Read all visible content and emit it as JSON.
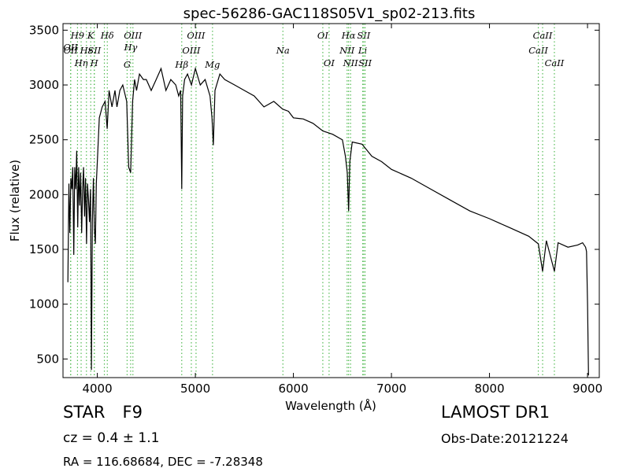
{
  "chart_data": {
    "type": "line",
    "title": "spec-56286-GAC118S05V1_sp02-213.fits",
    "xlabel": "Wavelength (Å)",
    "ylabel": "Flux (relative)",
    "xlim": [
      3650,
      9120
    ],
    "ylim": [
      330,
      3560
    ],
    "xticks": [
      4000,
      5000,
      6000,
      7000,
      8000,
      9000
    ],
    "yticks": [
      500,
      1000,
      1500,
      2000,
      2500,
      3000,
      3500
    ],
    "line_color": "#000000",
    "marker_color": "#55bb55",
    "series": [
      {
        "x": [
          3700,
          3710,
          3720,
          3730,
          3740,
          3750,
          3760,
          3770,
          3780,
          3790,
          3800,
          3810,
          3820,
          3830,
          3840,
          3850,
          3860,
          3870,
          3880,
          3890,
          3900,
          3910,
          3920,
          3930,
          3935,
          3940,
          3950,
          3960,
          3970,
          3980,
          3990,
          4000,
          4020,
          4050,
          4080,
          4101,
          4120,
          4150,
          4180,
          4200,
          4230,
          4260,
          4300,
          4320,
          4340,
          4360,
          4380,
          4400,
          4430,
          4470,
          4500,
          4550,
          4600,
          4650,
          4700,
          4750,
          4800,
          4830,
          4850,
          4861,
          4870,
          4890,
          4920,
          4960,
          5000,
          5050,
          5100,
          5150,
          5170,
          5183,
          5200,
          5250,
          5300,
          5400,
          5500,
          5600,
          5700,
          5800,
          5890,
          5950,
          6000,
          6100,
          6200,
          6300,
          6400,
          6500,
          6530,
          6550,
          6563,
          6575,
          6600,
          6700,
          6800,
          6900,
          7000,
          7200,
          7400,
          7600,
          7800,
          8000,
          8200,
          8400,
          8498,
          8542,
          8580,
          8662,
          8700,
          8800,
          8900,
          8950,
          8980,
          8990,
          9000,
          9010
        ],
        "y": [
          1200,
          2100,
          1650,
          2150,
          2050,
          2250,
          1450,
          2250,
          2050,
          2400,
          1700,
          2250,
          1900,
          2200,
          1650,
          2050,
          2250,
          1800,
          2150,
          1550,
          2100,
          1950,
          1750,
          2050,
          1350,
          400,
          1750,
          2150,
          1700,
          1550,
          2100,
          2300,
          2700,
          2800,
          2850,
          2600,
          2950,
          2800,
          2950,
          2800,
          2950,
          3000,
          2850,
          2250,
          2200,
          2850,
          3050,
          2950,
          3100,
          3050,
          3050,
          2950,
          3050,
          3150,
          2950,
          3050,
          3000,
          2900,
          2950,
          2050,
          2900,
          3050,
          3100,
          3000,
          3150,
          3000,
          3050,
          2900,
          2700,
          2450,
          2950,
          3100,
          3050,
          3000,
          2950,
          2900,
          2800,
          2850,
          2780,
          2760,
          2700,
          2690,
          2650,
          2580,
          2550,
          2500,
          2350,
          2200,
          1850,
          2300,
          2480,
          2460,
          2350,
          2300,
          2230,
          2150,
          2050,
          1950,
          1850,
          1780,
          1700,
          1620,
          1550,
          1300,
          1580,
          1300,
          1560,
          1520,
          1540,
          1560,
          1520,
          1480,
          1000,
          350
        ]
      }
    ],
    "line_markers": [
      {
        "wl": 3727,
        "row": 2,
        "label": "OII"
      },
      {
        "wl": 3729,
        "row": 3,
        "label": "OII"
      },
      {
        "wl": 3798,
        "row": 1,
        "label": "H9"
      },
      {
        "wl": 3835,
        "row": 4,
        "label": "Hη"
      },
      {
        "wl": 3889,
        "row": 3,
        "label": "Hε"
      },
      {
        "wl": 3933,
        "row": 1,
        "label": "K"
      },
      {
        "wl": 3968,
        "row": 4,
        "label": "H"
      },
      {
        "wl": 3970,
        "row": 3,
        "label": "SII"
      },
      {
        "wl": 4102,
        "row": 1,
        "label": "Hδ"
      },
      {
        "wl": 4072,
        "row": 3,
        "label": ""
      },
      {
        "wl": 4304,
        "row": 5,
        "label": "G"
      },
      {
        "wl": 4340,
        "row": 2,
        "label": "Hγ"
      },
      {
        "wl": 4363,
        "row": 1,
        "label": "OIII"
      },
      {
        "wl": 4861,
        "row": 5,
        "label": "Hβ"
      },
      {
        "wl": 4959,
        "row": 3,
        "label": "OIII"
      },
      {
        "wl": 5007,
        "row": 1,
        "label": "OIII"
      },
      {
        "wl": 5175,
        "row": 5,
        "label": "Mg"
      },
      {
        "wl": 5893,
        "row": 3,
        "label": "Na"
      },
      {
        "wl": 6300,
        "row": 1,
        "label": "OI"
      },
      {
        "wl": 6364,
        "row": 4,
        "label": "OI"
      },
      {
        "wl": 6548,
        "row": 3,
        "label": "NII"
      },
      {
        "wl": 6563,
        "row": 1,
        "label": "Hα"
      },
      {
        "wl": 6583,
        "row": 4,
        "label": "NII"
      },
      {
        "wl": 6707,
        "row": 3,
        "label": "Li"
      },
      {
        "wl": 6717,
        "row": 1,
        "label": "SII"
      },
      {
        "wl": 6731,
        "row": 4,
        "label": "SII"
      },
      {
        "wl": 8498,
        "row": 3,
        "label": "CaII"
      },
      {
        "wl": 8542,
        "row": 1,
        "label": "CaII"
      },
      {
        "wl": 8662,
        "row": 4,
        "label": "CaII"
      }
    ]
  },
  "info": {
    "class_label": "STAR",
    "subclass": "F9",
    "cz": "cz = 0.4 ± 1.1",
    "radec": "RA = 116.68684, DEC = -7.28348",
    "survey": "LAMOST DR1",
    "obs_date": "Obs-Date:20121224"
  }
}
